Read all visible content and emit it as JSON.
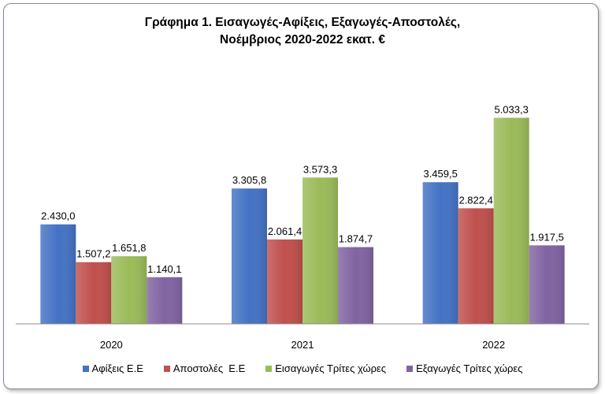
{
  "chart_data": {
    "type": "bar",
    "title": "Γράφημα 1. Εισαγωγές-Αφίξεις, Εξαγωγές-Αποστολές,",
    "subtitle": "Νοέμβριος 2020-2022 εκατ. €",
    "categories": [
      "2020",
      "2021",
      "2022"
    ],
    "series": [
      {
        "name": "Αφίξεις Ε.Ε",
        "color": "#4472c4",
        "values": [
          2430.0,
          3305.8,
          3459.5
        ],
        "labels": [
          "2.430,0",
          "3.305,8",
          "3.459,5"
        ]
      },
      {
        "name": "Αποστολές  Ε.Ε",
        "color": "#c0504d",
        "values": [
          1507.2,
          2061.4,
          2822.4
        ],
        "labels": [
          "1.507,2",
          "2.061,4",
          "2.822,4"
        ]
      },
      {
        "name": "Εισαγωγές Τρίτες χώρες",
        "color": "#9bbb59",
        "values": [
          1651.8,
          3573.3,
          5033.3
        ],
        "labels": [
          "1.651,8",
          "3.573,3",
          "5.033,3"
        ]
      },
      {
        "name": "Εξαγωγές Τρίτες χώρες",
        "color": "#8064a2",
        "values": [
          1140.1,
          1874.7,
          1917.5
        ],
        "labels": [
          "1.140,1",
          "1.874,7",
          "1.917,5"
        ]
      }
    ],
    "ylim": [
      0,
      5600
    ],
    "grid": false,
    "legend_position": "bottom"
  }
}
